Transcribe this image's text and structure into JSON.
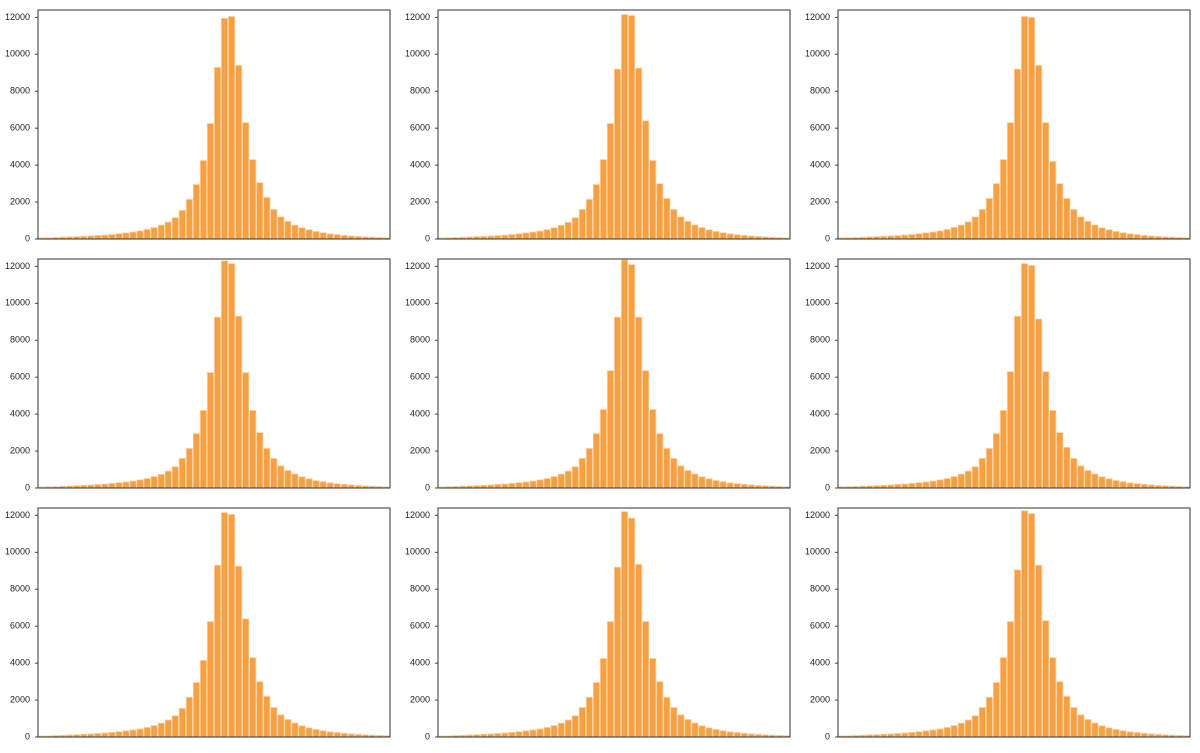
{
  "chart_data": [
    {
      "type": "bar",
      "color": "#f4a043",
      "ylim": [
        0,
        12400
      ],
      "yticks": [
        0,
        2000,
        4000,
        6000,
        8000,
        10000,
        12000
      ],
      "values": [
        60,
        70,
        85,
        100,
        115,
        130,
        150,
        170,
        195,
        220,
        250,
        290,
        330,
        380,
        440,
        520,
        620,
        750,
        920,
        1150,
        1550,
        2150,
        2950,
        4250,
        6250,
        9300,
        11950,
        12050,
        9400,
        6300,
        4300,
        3050,
        2250,
        1600,
        1200,
        950,
        750,
        610,
        500,
        410,
        340,
        280,
        240,
        200,
        170,
        140,
        120,
        100,
        85,
        70
      ]
    },
    {
      "type": "bar",
      "color": "#f4a043",
      "ylim": [
        0,
        12400
      ],
      "yticks": [
        0,
        2000,
        4000,
        6000,
        8000,
        10000,
        12000
      ],
      "values": [
        55,
        65,
        80,
        95,
        110,
        130,
        145,
        165,
        190,
        215,
        245,
        285,
        330,
        375,
        430,
        510,
        610,
        740,
        900,
        1150,
        1600,
        2150,
        2950,
        4300,
        6250,
        9200,
        12150,
        12100,
        9250,
        6400,
        4250,
        3000,
        2200,
        1600,
        1200,
        950,
        760,
        620,
        500,
        410,
        340,
        280,
        235,
        200,
        170,
        140,
        115,
        95,
        80,
        65
      ]
    },
    {
      "type": "bar",
      "color": "#f4a043",
      "ylim": [
        0,
        12400
      ],
      "yticks": [
        0,
        2000,
        4000,
        6000,
        8000,
        10000,
        12000
      ],
      "values": [
        60,
        70,
        80,
        95,
        115,
        130,
        150,
        170,
        190,
        220,
        250,
        290,
        335,
        380,
        440,
        520,
        630,
        750,
        930,
        1200,
        1600,
        2200,
        3000,
        4300,
        6300,
        9200,
        12050,
        12000,
        9400,
        6300,
        4200,
        3000,
        2200,
        1600,
        1200,
        950,
        760,
        610,
        500,
        410,
        340,
        285,
        240,
        200,
        170,
        140,
        120,
        100,
        85,
        70
      ]
    },
    {
      "type": "bar",
      "color": "#f4a043",
      "ylim": [
        0,
        12400
      ],
      "yticks": [
        0,
        2000,
        4000,
        6000,
        8000,
        10000,
        12000
      ],
      "values": [
        55,
        65,
        80,
        95,
        110,
        125,
        145,
        165,
        190,
        215,
        250,
        290,
        330,
        380,
        440,
        520,
        620,
        740,
        920,
        1150,
        1600,
        2150,
        2950,
        4200,
        6250,
        9250,
        12300,
        12150,
        9300,
        6250,
        4200,
        3000,
        2150,
        1600,
        1200,
        950,
        760,
        610,
        500,
        400,
        340,
        280,
        235,
        200,
        165,
        140,
        115,
        95,
        80,
        65
      ]
    },
    {
      "type": "bar",
      "color": "#f4a043",
      "ylim": [
        0,
        12400
      ],
      "yticks": [
        0,
        2000,
        4000,
        6000,
        8000,
        10000,
        12000
      ],
      "values": [
        60,
        70,
        85,
        100,
        115,
        130,
        150,
        170,
        195,
        220,
        250,
        290,
        330,
        380,
        440,
        520,
        620,
        750,
        920,
        1150,
        1600,
        2150,
        2950,
        4250,
        6350,
        9250,
        12350,
        12100,
        9250,
        6350,
        4250,
        2950,
        2150,
        1600,
        1200,
        950,
        760,
        610,
        500,
        410,
        340,
        280,
        240,
        200,
        170,
        140,
        120,
        100,
        85,
        70
      ]
    },
    {
      "type": "bar",
      "color": "#f4a043",
      "ylim": [
        0,
        12400
      ],
      "yticks": [
        0,
        2000,
        4000,
        6000,
        8000,
        10000,
        12000
      ],
      "values": [
        70,
        75,
        85,
        100,
        115,
        130,
        150,
        170,
        195,
        220,
        250,
        290,
        330,
        380,
        440,
        520,
        620,
        750,
        920,
        1150,
        1600,
        2150,
        2950,
        4200,
        6300,
        9300,
        12150,
        12050,
        9150,
        6300,
        4200,
        3000,
        2200,
        1600,
        1200,
        950,
        760,
        610,
        500,
        410,
        340,
        280,
        240,
        200,
        170,
        140,
        120,
        100,
        85,
        70
      ]
    },
    {
      "type": "bar",
      "color": "#f4a043",
      "ylim": [
        0,
        12400
      ],
      "yticks": [
        0,
        2000,
        4000,
        6000,
        8000,
        10000,
        12000
      ],
      "values": [
        55,
        65,
        80,
        95,
        110,
        130,
        150,
        170,
        195,
        220,
        250,
        290,
        330,
        380,
        440,
        520,
        620,
        750,
        920,
        1150,
        1550,
        2150,
        2950,
        4150,
        6250,
        9300,
        12150,
        12050,
        9250,
        6400,
        4300,
        3000,
        2200,
        1600,
        1200,
        950,
        760,
        610,
        500,
        410,
        340,
        280,
        240,
        200,
        170,
        140,
        120,
        100,
        85,
        70
      ]
    },
    {
      "type": "bar",
      "color": "#f4a043",
      "ylim": [
        0,
        12400
      ],
      "yticks": [
        0,
        2000,
        4000,
        6000,
        8000,
        10000,
        12000
      ],
      "values": [
        55,
        65,
        80,
        95,
        110,
        130,
        150,
        170,
        195,
        220,
        250,
        290,
        330,
        380,
        440,
        520,
        620,
        750,
        920,
        1150,
        1600,
        2150,
        2950,
        4250,
        6250,
        9200,
        12200,
        11850,
        9350,
        6250,
        4250,
        3000,
        2150,
        1600,
        1200,
        950,
        760,
        610,
        500,
        410,
        340,
        280,
        240,
        200,
        170,
        140,
        120,
        100,
        85,
        70
      ]
    },
    {
      "type": "bar",
      "color": "#f4a043",
      "ylim": [
        0,
        12400
      ],
      "yticks": [
        0,
        2000,
        4000,
        6000,
        8000,
        10000,
        12000
      ],
      "values": [
        60,
        70,
        85,
        100,
        115,
        130,
        150,
        170,
        195,
        220,
        250,
        290,
        330,
        380,
        440,
        520,
        620,
        750,
        920,
        1150,
        1600,
        2150,
        2950,
        4300,
        6250,
        9050,
        12250,
        12100,
        9300,
        6300,
        4300,
        3000,
        2200,
        1600,
        1200,
        950,
        760,
        610,
        500,
        410,
        340,
        280,
        240,
        200,
        170,
        140,
        120,
        100,
        85,
        70
      ]
    }
  ]
}
